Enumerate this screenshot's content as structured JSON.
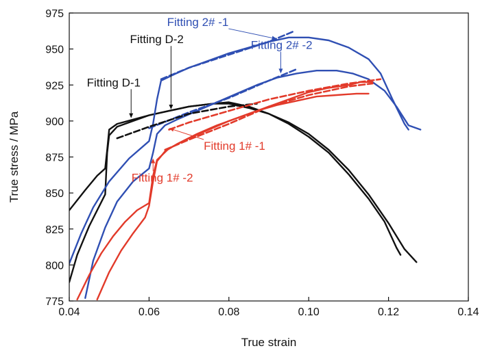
{
  "chart_data": {
    "type": "line",
    "title": "",
    "xlabel": "True strain",
    "ylabel": "True stress / MPa",
    "xlim": [
      0.04,
      0.14
    ],
    "ylim": [
      775,
      975
    ],
    "xticks": [
      "0.04",
      "0.06",
      "0.08",
      "0.10",
      "0.12",
      "0.14"
    ],
    "yticks": [
      "775",
      "800",
      "825",
      "850",
      "875",
      "900",
      "925",
      "950",
      "975"
    ],
    "grid": false,
    "legend": "none",
    "colors": {
      "black": "#111111",
      "blue": "#2f4fb3",
      "red": "#e23a2a"
    },
    "series": [
      {
        "color": "#111111",
        "style": "solid",
        "points": [
          [
            0.04,
            838
          ],
          [
            0.044,
            852
          ],
          [
            0.047,
            862
          ],
          [
            0.049,
            867
          ],
          [
            0.0495,
            880
          ],
          [
            0.05,
            894
          ],
          [
            0.052,
            898
          ],
          [
            0.056,
            901
          ],
          [
            0.06,
            904
          ],
          [
            0.065,
            907
          ],
          [
            0.07,
            910
          ],
          [
            0.076,
            912
          ],
          [
            0.08,
            912
          ],
          [
            0.085,
            909
          ],
          [
            0.09,
            905
          ],
          [
            0.095,
            899
          ],
          [
            0.1,
            891
          ],
          [
            0.105,
            880
          ],
          [
            0.11,
            866
          ],
          [
            0.115,
            849
          ],
          [
            0.12,
            829
          ],
          [
            0.124,
            811
          ],
          [
            0.127,
            802
          ]
        ]
      },
      {
        "color": "#111111",
        "style": "solid",
        "points": [
          [
            0.04,
            788
          ],
          [
            0.042,
            807
          ],
          [
            0.045,
            827
          ],
          [
            0.047,
            838
          ],
          [
            0.049,
            849
          ],
          [
            0.0495,
            878
          ],
          [
            0.05,
            890
          ],
          [
            0.052,
            896
          ],
          [
            0.056,
            900
          ],
          [
            0.06,
            904
          ],
          [
            0.065,
            907
          ],
          [
            0.07,
            910
          ],
          [
            0.076,
            912
          ],
          [
            0.08,
            913
          ],
          [
            0.085,
            910
          ],
          [
            0.09,
            905
          ],
          [
            0.095,
            898
          ],
          [
            0.1,
            889
          ],
          [
            0.105,
            878
          ],
          [
            0.11,
            863
          ],
          [
            0.115,
            846
          ],
          [
            0.119,
            830
          ],
          [
            0.122,
            812
          ],
          [
            0.123,
            807
          ]
        ]
      },
      {
        "color": "#2f4fb3",
        "style": "solid",
        "points": [
          [
            0.04,
            801
          ],
          [
            0.043,
            822
          ],
          [
            0.046,
            840
          ],
          [
            0.05,
            858
          ],
          [
            0.055,
            874
          ],
          [
            0.06,
            886
          ],
          [
            0.061,
            898
          ],
          [
            0.062,
            915
          ],
          [
            0.063,
            928
          ],
          [
            0.066,
            932
          ],
          [
            0.07,
            937
          ],
          [
            0.075,
            942
          ],
          [
            0.08,
            947
          ],
          [
            0.085,
            951
          ],
          [
            0.09,
            955
          ],
          [
            0.095,
            958
          ],
          [
            0.1,
            958
          ],
          [
            0.105,
            956
          ],
          [
            0.11,
            951
          ],
          [
            0.115,
            943
          ],
          [
            0.118,
            933
          ],
          [
            0.121,
            915
          ],
          [
            0.124,
            898
          ],
          [
            0.125,
            894
          ]
        ]
      },
      {
        "color": "#2f4fb3",
        "style": "solid",
        "points": [
          [
            0.044,
            777
          ],
          [
            0.046,
            803
          ],
          [
            0.049,
            826
          ],
          [
            0.052,
            844
          ],
          [
            0.056,
            858
          ],
          [
            0.06,
            867
          ],
          [
            0.061,
            878
          ],
          [
            0.062,
            891
          ],
          [
            0.064,
            897
          ],
          [
            0.067,
            901
          ],
          [
            0.072,
            907
          ],
          [
            0.077,
            913
          ],
          [
            0.082,
            919
          ],
          [
            0.087,
            925
          ],
          [
            0.092,
            930
          ],
          [
            0.097,
            933
          ],
          [
            0.102,
            935
          ],
          [
            0.107,
            935
          ],
          [
            0.111,
            933
          ],
          [
            0.115,
            929
          ],
          [
            0.119,
            921
          ],
          [
            0.122,
            910
          ],
          [
            0.125,
            897
          ],
          [
            0.128,
            894
          ]
        ]
      },
      {
        "color": "#2f4fb3",
        "style": "dashed",
        "points": [
          [
            0.063,
            929
          ],
          [
            0.07,
            937
          ],
          [
            0.08,
            946
          ],
          [
            0.09,
            955
          ],
          [
            0.096,
            962
          ]
        ]
      },
      {
        "color": "#2f4fb3",
        "style": "dashed",
        "points": [
          [
            0.06,
            895
          ],
          [
            0.07,
            906
          ],
          [
            0.08,
            916
          ],
          [
            0.09,
            928
          ],
          [
            0.097,
            936
          ]
        ]
      },
      {
        "color": "#111111",
        "style": "dashed",
        "points": [
          [
            0.052,
            888
          ],
          [
            0.06,
            896
          ],
          [
            0.07,
            905
          ],
          [
            0.08,
            910
          ],
          [
            0.087,
            912
          ]
        ]
      },
      {
        "color": "#e23a2a",
        "style": "solid",
        "points": [
          [
            0.047,
            776
          ],
          [
            0.05,
            795
          ],
          [
            0.053,
            810
          ],
          [
            0.056,
            822
          ],
          [
            0.059,
            833
          ],
          [
            0.06,
            841
          ],
          [
            0.061,
            858
          ],
          [
            0.062,
            872
          ],
          [
            0.064,
            879
          ],
          [
            0.067,
            884
          ],
          [
            0.072,
            891
          ],
          [
            0.077,
            897
          ],
          [
            0.082,
            902
          ],
          [
            0.087,
            907
          ],
          [
            0.092,
            911
          ],
          [
            0.097,
            914
          ],
          [
            0.102,
            917
          ],
          [
            0.107,
            918
          ],
          [
            0.112,
            919
          ],
          [
            0.115,
            919
          ]
        ]
      },
      {
        "color": "#e23a2a",
        "style": "solid",
        "points": [
          [
            0.042,
            776
          ],
          [
            0.045,
            793
          ],
          [
            0.048,
            808
          ],
          [
            0.051,
            820
          ],
          [
            0.054,
            830
          ],
          [
            0.057,
            838
          ],
          [
            0.06,
            843
          ],
          [
            0.061,
            862
          ],
          [
            0.062,
            873
          ],
          [
            0.065,
            881
          ],
          [
            0.07,
            888
          ],
          [
            0.075,
            894
          ],
          [
            0.08,
            900
          ],
          [
            0.085,
            905
          ],
          [
            0.09,
            910
          ],
          [
            0.095,
            915
          ],
          [
            0.1,
            920
          ],
          [
            0.105,
            923
          ],
          [
            0.11,
            925
          ],
          [
            0.113,
            927
          ],
          [
            0.116,
            927
          ]
        ]
      },
      {
        "color": "#e23a2a",
        "style": "dashed",
        "points": [
          [
            0.065,
            894
          ],
          [
            0.07,
            899
          ],
          [
            0.08,
            907
          ],
          [
            0.09,
            915
          ],
          [
            0.1,
            921
          ],
          [
            0.11,
            926
          ],
          [
            0.118,
            929
          ]
        ]
      },
      {
        "color": "#e23a2a",
        "style": "dashed",
        "points": [
          [
            0.064,
            880
          ],
          [
            0.07,
            887
          ],
          [
            0.08,
            898
          ],
          [
            0.09,
            910
          ],
          [
            0.1,
            918
          ],
          [
            0.11,
            924
          ],
          [
            0.116,
            926
          ]
        ]
      }
    ],
    "annotations": [
      {
        "text": "Fitting 2# -1",
        "color": "#2f4fb3",
        "pos": [
          0.0645,
          966
        ],
        "arrow_to": [
          0.092,
          957
        ]
      },
      {
        "text": "Fitting 2# -2",
        "color": "#2f4fb3",
        "pos": [
          0.0855,
          950
        ],
        "arrow_to": [
          0.093,
          933
        ]
      },
      {
        "text": "Fitting D-2",
        "color": "#111111",
        "pos": [
          0.0552,
          954
        ],
        "arrow_to": [
          0.0655,
          908
        ]
      },
      {
        "text": "Fitting D-1",
        "color": "#111111",
        "pos": [
          0.0444,
          924
        ],
        "arrow_to": [
          0.0555,
          902
        ]
      },
      {
        "text": "Fitting 1# -1",
        "color": "#e23a2a",
        "pos": [
          0.0737,
          880
        ],
        "arrow_to": [
          0.065,
          895
        ]
      },
      {
        "text": "Fitting 1# -2",
        "color": "#e23a2a",
        "pos": [
          0.0556,
          858
        ],
        "arrow_to": [
          0.061,
          874
        ]
      }
    ]
  }
}
